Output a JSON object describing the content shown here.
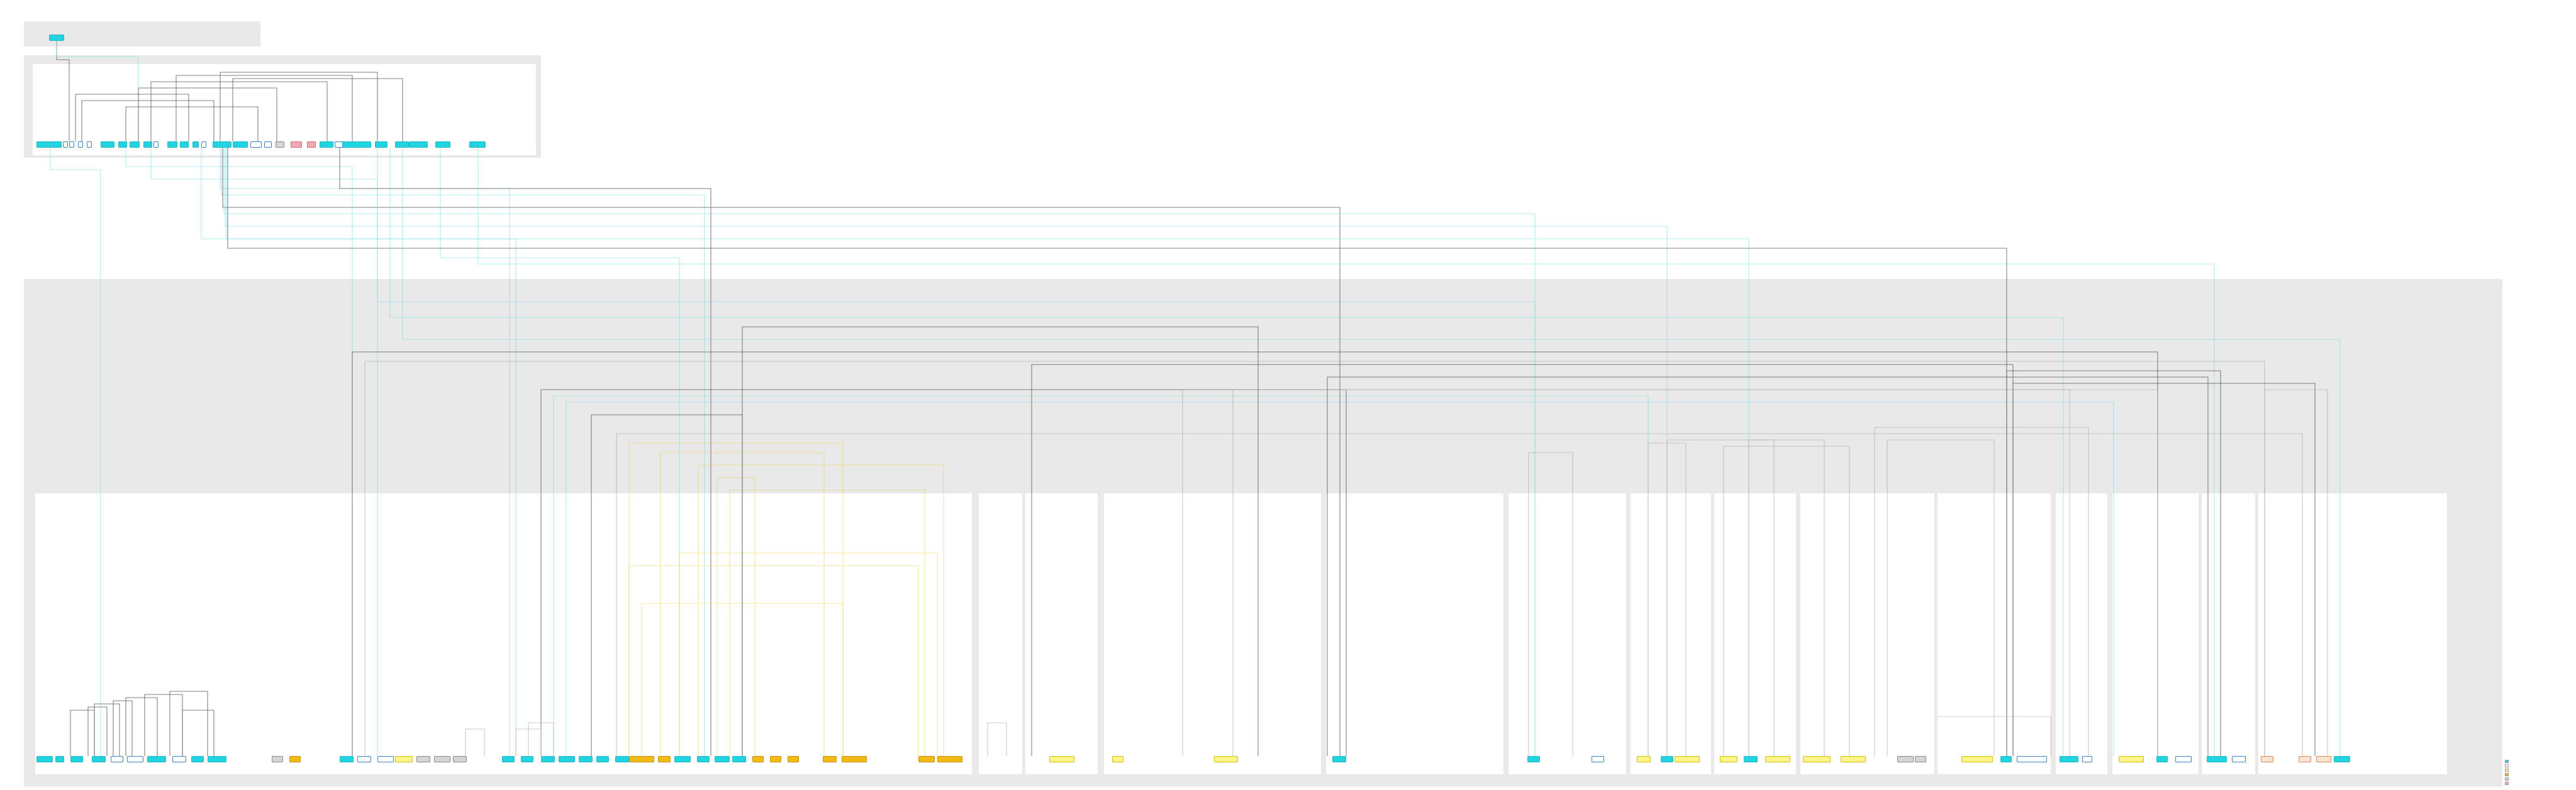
{
  "diagram": {
    "lanes": [
      {
        "id": "lane-top",
        "label": ""
      },
      {
        "id": "lane-mid",
        "label": ""
      },
      {
        "id": "lane-bottom",
        "label": ""
      }
    ],
    "legend": [
      {
        "color": "#22d3e0",
        "label": ""
      },
      {
        "color": "#ffffff",
        "label": ""
      },
      {
        "color": "#fff48c",
        "label": ""
      },
      {
        "color": "#f5b914",
        "label": ""
      },
      {
        "color": "#d5d5d5",
        "label": ""
      },
      {
        "color": "#f3a7b0",
        "label": ""
      }
    ],
    "node_color_groups": {
      "cyan": "#22d3e0",
      "white": "#ffffff",
      "yellow": "#fff48c",
      "orange": "#f5b914",
      "gray": "#d5d5d5",
      "pink": "#f3a7b0",
      "salmon": "#fbe3d3"
    },
    "edge_colors": {
      "cyan": "#6fd9e0",
      "dark": "#555555",
      "yellow": "#e8d24a",
      "gray": "#a0a0a0"
    },
    "node_count": 92,
    "edge_count": 70,
    "text_note": ""
  }
}
